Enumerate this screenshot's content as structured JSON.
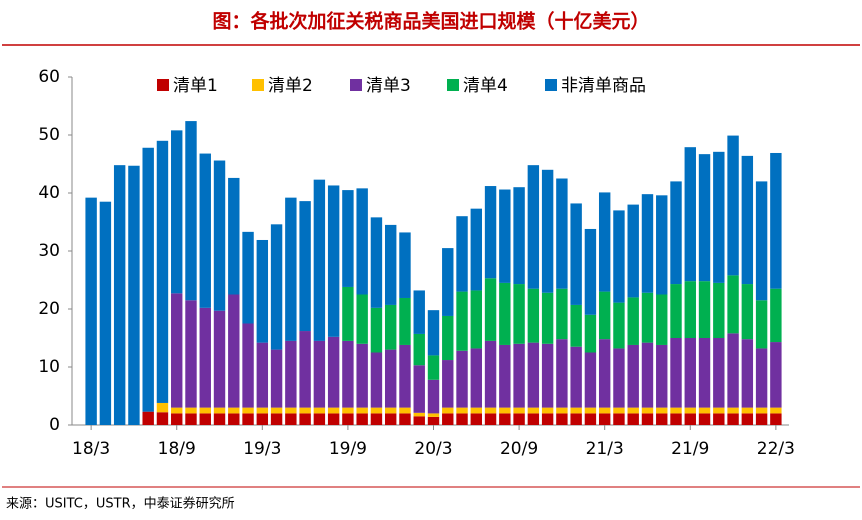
{
  "chart_data": {
    "type": "stacked-bar",
    "title": "图：各批次加征关税商品美国进口规模（十亿美元）",
    "source": "来源：USITC，USTR，中泰证券研究所",
    "categories": [
      "18/3",
      null,
      null,
      null,
      null,
      null,
      "18/9",
      null,
      null,
      null,
      null,
      null,
      "19/3",
      null,
      null,
      null,
      null,
      null,
      "19/9",
      null,
      null,
      null,
      null,
      null,
      "20/3",
      null,
      null,
      null,
      null,
      null,
      "20/9",
      null,
      null,
      null,
      null,
      null,
      "21/3",
      null,
      null,
      null,
      null,
      null,
      "21/9",
      null,
      null,
      null,
      null,
      null,
      "22/3"
    ],
    "series": [
      {
        "name": "清单1",
        "color": "#c00000",
        "values": [
          0,
          0,
          0,
          0,
          2.3,
          2.2,
          2.0,
          2.0,
          2.0,
          2.0,
          2.0,
          2.0,
          2.0,
          2.0,
          2.0,
          2.0,
          2.0,
          2.0,
          2.0,
          2.0,
          2.0,
          2.0,
          2.0,
          1.5,
          1.4,
          2.0,
          2.0,
          2.0,
          2.0,
          2.0,
          2.0,
          2.0,
          2.0,
          2.0,
          2.0,
          2.0,
          2.0,
          2.0,
          2.0,
          2.0,
          2.0,
          2.0,
          2.0,
          2.0,
          2.0,
          2.0,
          2.0,
          2.0,
          2.0
        ]
      },
      {
        "name": "清单2",
        "color": "#ffc000",
        "values": [
          0,
          0,
          0,
          0,
          0,
          1.6,
          1.0,
          1.0,
          1.0,
          1.0,
          1.0,
          1.0,
          1.0,
          1.0,
          1.0,
          1.0,
          1.0,
          1.0,
          1.0,
          1.0,
          1.0,
          1.0,
          1.0,
          0.6,
          0.6,
          1.0,
          1.0,
          1.0,
          1.0,
          1.0,
          1.0,
          1.0,
          1.0,
          1.0,
          1.0,
          1.0,
          1.0,
          1.0,
          1.0,
          1.0,
          1.0,
          1.0,
          1.0,
          1.0,
          1.0,
          1.0,
          1.0,
          1.0,
          1.0
        ]
      },
      {
        "name": "清单3",
        "color": "#7030a0",
        "values": [
          0,
          0,
          0,
          0,
          0,
          0,
          19.7,
          18.5,
          17.2,
          16.7,
          19.5,
          14.5,
          11.2,
          10.0,
          11.5,
          13.2,
          11.5,
          12.2,
          11.5,
          11.0,
          9.5,
          10.0,
          10.8,
          8.2,
          5.8,
          8.2,
          9.8,
          10.2,
          11.5,
          10.8,
          11.0,
          11.2,
          11.0,
          11.8,
          10.5,
          9.5,
          11.8,
          10.2,
          10.8,
          11.2,
          10.8,
          12.0,
          12.0,
          12.0,
          12.0,
          12.8,
          11.8,
          10.2,
          11.3
        ]
      },
      {
        "name": "清单4",
        "color": "#00b050",
        "values": [
          0,
          0,
          0,
          0,
          0,
          0,
          0,
          0,
          0,
          0,
          0,
          0,
          0,
          0,
          0,
          0,
          0,
          0,
          9.3,
          8.5,
          7.7,
          7.7,
          8.1,
          5.4,
          4.2,
          7.6,
          10.2,
          10.0,
          10.8,
          10.7,
          10.3,
          9.3,
          8.8,
          8.7,
          7.2,
          6.5,
          8.2,
          7.9,
          8.2,
          8.6,
          8.7,
          9.3,
          9.8,
          9.8,
          9.5,
          10.0,
          9.5,
          8.3,
          9.2
        ]
      },
      {
        "name": "非清单商品",
        "color": "#0070c0",
        "values": [
          39.2,
          38.5,
          44.8,
          44.7,
          45.5,
          45.2,
          28.1,
          30.9,
          26.6,
          25.9,
          20.1,
          15.8,
          17.7,
          21.6,
          24.7,
          22.4,
          27.8,
          26.1,
          16.7,
          18.3,
          15.6,
          13.8,
          11.3,
          7.5,
          7.8,
          11.7,
          13.0,
          14.1,
          15.9,
          16.1,
          16.7,
          21.3,
          21.2,
          19.0,
          17.5,
          14.8,
          17.1,
          15.9,
          16.0,
          17.0,
          17.1,
          17.7,
          23.1,
          21.9,
          22.6,
          24.1,
          22.1,
          20.5,
          23.4
        ]
      }
    ],
    "ylim": [
      0,
      60
    ],
    "yticks": [
      0,
      10,
      20,
      30,
      40,
      50,
      60
    ],
    "legend": "top"
  }
}
